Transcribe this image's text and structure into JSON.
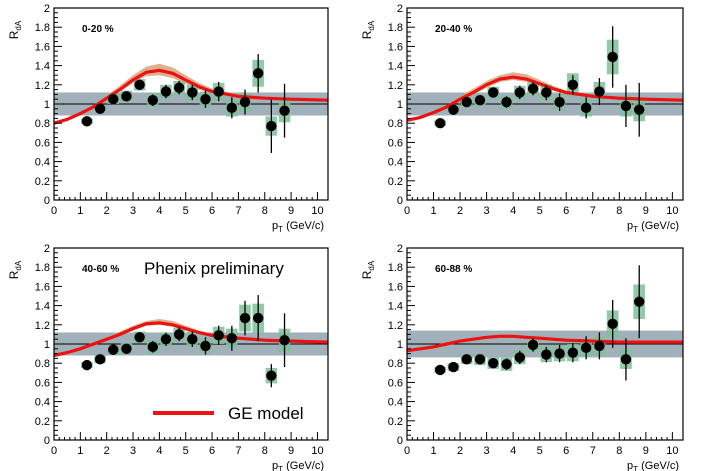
{
  "annotations": {
    "watermark": "Phenix preliminary",
    "model_legend": "GE model"
  },
  "colors": {
    "data_points": "#000000",
    "model_curve": "#ee1111",
    "model_band": "#d7a37a",
    "syst_boxes": "#7fbf9a",
    "norm_band": "#8fa3ad",
    "frame": "#000000"
  },
  "chart_data": [
    {
      "type": "scatter",
      "label": "0-20 %",
      "xlabel": "p_T (GeV/c)",
      "ylabel": "R_dA",
      "xlim": [
        0,
        10.4
      ],
      "ylim": [
        0,
        2
      ],
      "xticks": [
        0,
        1,
        2,
        3,
        4,
        5,
        6,
        7,
        8,
        9,
        10
      ],
      "yticks": [
        0,
        0.2,
        0.4,
        0.6,
        0.8,
        1,
        1.2,
        1.4,
        1.6,
        1.8,
        2
      ],
      "ytick_labels": [
        "0",
        "0.2",
        "0.4",
        "0.6",
        "0.8",
        "1",
        "1.2",
        "1.4",
        "1.6",
        "1.8",
        "2"
      ],
      "points": [
        {
          "x": 1.25,
          "y": 0.82,
          "err": 0.02,
          "syst": 0.03
        },
        {
          "x": 1.75,
          "y": 0.95,
          "err": 0.02,
          "syst": 0.04
        },
        {
          "x": 2.25,
          "y": 1.05,
          "err": 0.03,
          "syst": 0.05
        },
        {
          "x": 2.75,
          "y": 1.08,
          "err": 0.04,
          "syst": 0.06
        },
        {
          "x": 3.25,
          "y": 1.2,
          "err": 0.05,
          "syst": 0.06
        },
        {
          "x": 3.75,
          "y": 1.04,
          "err": 0.06,
          "syst": 0.07
        },
        {
          "x": 4.25,
          "y": 1.13,
          "err": 0.07,
          "syst": 0.07
        },
        {
          "x": 4.75,
          "y": 1.17,
          "err": 0.07,
          "syst": 0.07
        },
        {
          "x": 5.25,
          "y": 1.12,
          "err": 0.08,
          "syst": 0.08
        },
        {
          "x": 5.75,
          "y": 1.05,
          "err": 0.09,
          "syst": 0.08
        },
        {
          "x": 6.25,
          "y": 1.13,
          "err": 0.1,
          "syst": 0.09
        },
        {
          "x": 6.75,
          "y": 0.96,
          "err": 0.11,
          "syst": 0.09
        },
        {
          "x": 7.25,
          "y": 1.02,
          "err": 0.13,
          "syst": 0.1
        },
        {
          "x": 7.75,
          "y": 1.32,
          "err": 0.2,
          "syst": 0.14
        },
        {
          "x": 8.25,
          "y": 0.77,
          "err": 0.28,
          "syst": 0.1
        },
        {
          "x": 8.75,
          "y": 0.93,
          "err": 0.28,
          "syst": 0.12
        }
      ],
      "model": {
        "x": [
          0,
          0.5,
          1,
          1.5,
          2,
          2.5,
          3,
          3.5,
          4,
          4.5,
          5,
          5.5,
          6,
          7,
          8,
          9,
          10.4
        ],
        "y": [
          0.8,
          0.84,
          0.9,
          0.97,
          1.06,
          1.15,
          1.25,
          1.33,
          1.35,
          1.32,
          1.25,
          1.18,
          1.13,
          1.08,
          1.06,
          1.05,
          1.04
        ],
        "band_upper": [
          0.8,
          0.84,
          0.91,
          0.99,
          1.09,
          1.19,
          1.3,
          1.39,
          1.42,
          1.38,
          1.3,
          1.22,
          1.16,
          1.1,
          1.07,
          1.05,
          1.04
        ],
        "band_lower": [
          0.8,
          0.84,
          0.89,
          0.96,
          1.04,
          1.13,
          1.22,
          1.29,
          1.3,
          1.27,
          1.21,
          1.15,
          1.11,
          1.07,
          1.06,
          1.05,
          1.04
        ]
      },
      "norm_band": [
        0.88,
        1.12
      ],
      "reference_line": 1
    },
    {
      "type": "scatter",
      "label": "20-40 %",
      "xlabel": "p_T (GeV/c)",
      "ylabel": "R_dA",
      "xlim": [
        0,
        10.4
      ],
      "ylim": [
        0,
        2
      ],
      "xticks": [
        0,
        1,
        2,
        3,
        4,
        5,
        6,
        7,
        8,
        9,
        10
      ],
      "yticks": [
        0,
        0.2,
        0.4,
        0.6,
        0.8,
        1,
        1.2,
        1.4,
        1.6,
        1.8,
        2
      ],
      "ytick_labels": [
        "0",
        "0.2",
        "0.4",
        "0.6",
        "0.8",
        "1",
        "1.2",
        "1.4",
        "1.6",
        "1.8",
        "2"
      ],
      "points": [
        {
          "x": 1.25,
          "y": 0.8,
          "err": 0.02,
          "syst": 0.03
        },
        {
          "x": 1.75,
          "y": 0.94,
          "err": 0.02,
          "syst": 0.04
        },
        {
          "x": 2.25,
          "y": 1.02,
          "err": 0.03,
          "syst": 0.05
        },
        {
          "x": 2.75,
          "y": 1.04,
          "err": 0.04,
          "syst": 0.06
        },
        {
          "x": 3.25,
          "y": 1.12,
          "err": 0.05,
          "syst": 0.06
        },
        {
          "x": 3.75,
          "y": 1.02,
          "err": 0.06,
          "syst": 0.07
        },
        {
          "x": 4.25,
          "y": 1.12,
          "err": 0.07,
          "syst": 0.07
        },
        {
          "x": 4.75,
          "y": 1.16,
          "err": 0.07,
          "syst": 0.07
        },
        {
          "x": 5.25,
          "y": 1.12,
          "err": 0.08,
          "syst": 0.08
        },
        {
          "x": 5.75,
          "y": 1.02,
          "err": 0.09,
          "syst": 0.08
        },
        {
          "x": 6.25,
          "y": 1.2,
          "err": 0.1,
          "syst": 0.12
        },
        {
          "x": 6.75,
          "y": 0.96,
          "err": 0.11,
          "syst": 0.09
        },
        {
          "x": 7.25,
          "y": 1.13,
          "err": 0.14,
          "syst": 0.1
        },
        {
          "x": 7.75,
          "y": 1.49,
          "err": 0.32,
          "syst": 0.18
        },
        {
          "x": 8.25,
          "y": 0.98,
          "err": 0.22,
          "syst": 0.11
        },
        {
          "x": 8.75,
          "y": 0.94,
          "err": 0.28,
          "syst": 0.12
        }
      ],
      "model": {
        "x": [
          0,
          0.5,
          1,
          1.5,
          2,
          2.5,
          3,
          3.5,
          4,
          4.5,
          5,
          5.5,
          6,
          7,
          8,
          9,
          10.4
        ],
        "y": [
          0.83,
          0.86,
          0.91,
          0.97,
          1.05,
          1.12,
          1.2,
          1.26,
          1.28,
          1.26,
          1.21,
          1.16,
          1.12,
          1.08,
          1.06,
          1.05,
          1.04
        ],
        "band_upper": [
          0.83,
          0.86,
          0.92,
          0.99,
          1.08,
          1.16,
          1.24,
          1.3,
          1.33,
          1.31,
          1.25,
          1.19,
          1.14,
          1.09,
          1.07,
          1.05,
          1.04
        ],
        "band_lower": [
          0.83,
          0.86,
          0.9,
          0.96,
          1.03,
          1.1,
          1.17,
          1.23,
          1.25,
          1.23,
          1.19,
          1.14,
          1.1,
          1.07,
          1.06,
          1.05,
          1.04
        ]
      },
      "norm_band": [
        0.88,
        1.12
      ],
      "reference_line": 1
    },
    {
      "type": "scatter",
      "label": "40-60 %",
      "xlabel": "p_T (GeV/c)",
      "ylabel": "R_dA",
      "xlim": [
        0,
        10.4
      ],
      "ylim": [
        0,
        2
      ],
      "xticks": [
        0,
        1,
        2,
        3,
        4,
        5,
        6,
        7,
        8,
        9,
        10
      ],
      "yticks": [
        0,
        0.2,
        0.4,
        0.6,
        0.8,
        1,
        1.2,
        1.4,
        1.6,
        1.8,
        2
      ],
      "ytick_labels": [
        "0",
        "0.2",
        "0.4",
        "0.6",
        "0.8",
        "1",
        "1.2",
        "1.4",
        "1.6",
        "1.8",
        "2"
      ],
      "points": [
        {
          "x": 1.25,
          "y": 0.78,
          "err": 0.02,
          "syst": 0.03
        },
        {
          "x": 1.75,
          "y": 0.84,
          "err": 0.02,
          "syst": 0.04
        },
        {
          "x": 2.25,
          "y": 0.94,
          "err": 0.03,
          "syst": 0.05
        },
        {
          "x": 2.75,
          "y": 0.95,
          "err": 0.04,
          "syst": 0.06
        },
        {
          "x": 3.25,
          "y": 1.07,
          "err": 0.05,
          "syst": 0.06
        },
        {
          "x": 3.75,
          "y": 0.97,
          "err": 0.06,
          "syst": 0.07
        },
        {
          "x": 4.25,
          "y": 1.05,
          "err": 0.07,
          "syst": 0.07
        },
        {
          "x": 4.75,
          "y": 1.1,
          "err": 0.07,
          "syst": 0.07
        },
        {
          "x": 5.25,
          "y": 1.05,
          "err": 0.08,
          "syst": 0.08
        },
        {
          "x": 5.75,
          "y": 0.98,
          "err": 0.09,
          "syst": 0.08
        },
        {
          "x": 6.25,
          "y": 1.09,
          "err": 0.1,
          "syst": 0.09
        },
        {
          "x": 6.75,
          "y": 1.06,
          "err": 0.13,
          "syst": 0.1
        },
        {
          "x": 7.25,
          "y": 1.27,
          "err": 0.18,
          "syst": 0.14
        },
        {
          "x": 7.75,
          "y": 1.27,
          "err": 0.24,
          "syst": 0.15
        },
        {
          "x": 8.25,
          "y": 0.67,
          "err": 0.12,
          "syst": 0.08
        },
        {
          "x": 8.75,
          "y": 1.04,
          "err": 0.28,
          "syst": 0.12
        }
      ],
      "model": {
        "x": [
          0,
          0.5,
          1,
          1.5,
          2,
          2.5,
          3,
          3.5,
          4,
          4.5,
          5,
          5.5,
          6,
          7,
          8,
          9,
          10.4
        ],
        "y": [
          0.88,
          0.91,
          0.95,
          1.0,
          1.05,
          1.1,
          1.16,
          1.21,
          1.22,
          1.2,
          1.16,
          1.12,
          1.09,
          1.06,
          1.04,
          1.03,
          1.02
        ],
        "band_upper": [
          0.88,
          0.91,
          0.96,
          1.01,
          1.07,
          1.13,
          1.19,
          1.24,
          1.26,
          1.24,
          1.19,
          1.14,
          1.1,
          1.07,
          1.04,
          1.03,
          1.02
        ],
        "band_lower": [
          0.88,
          0.91,
          0.94,
          0.99,
          1.04,
          1.09,
          1.14,
          1.19,
          1.2,
          1.18,
          1.14,
          1.11,
          1.08,
          1.05,
          1.04,
          1.03,
          1.02
        ]
      },
      "norm_band": [
        0.88,
        1.12
      ],
      "reference_line": 1
    },
    {
      "type": "scatter",
      "label": "60-88 %",
      "xlabel": "p_T (GeV/c)",
      "ylabel": "R_dA",
      "xlim": [
        0,
        10.4
      ],
      "ylim": [
        0,
        2
      ],
      "xticks": [
        0,
        1,
        2,
        3,
        4,
        5,
        6,
        7,
        8,
        9,
        10
      ],
      "yticks": [
        0,
        0.2,
        0.4,
        0.6,
        0.8,
        1,
        1.2,
        1.4,
        1.6,
        1.8,
        2
      ],
      "ytick_labels": [
        "0",
        "0.2",
        "0.4",
        "0.6",
        "0.8",
        "1",
        "1.2",
        "1.4",
        "1.6",
        "1.8",
        "2"
      ],
      "points": [
        {
          "x": 1.25,
          "y": 0.73,
          "err": 0.02,
          "syst": 0.03
        },
        {
          "x": 1.75,
          "y": 0.76,
          "err": 0.02,
          "syst": 0.04
        },
        {
          "x": 2.25,
          "y": 0.84,
          "err": 0.03,
          "syst": 0.05
        },
        {
          "x": 2.75,
          "y": 0.84,
          "err": 0.04,
          "syst": 0.06
        },
        {
          "x": 3.25,
          "y": 0.8,
          "err": 0.05,
          "syst": 0.06
        },
        {
          "x": 3.75,
          "y": 0.79,
          "err": 0.06,
          "syst": 0.07
        },
        {
          "x": 4.25,
          "y": 0.86,
          "err": 0.07,
          "syst": 0.07
        },
        {
          "x": 4.75,
          "y": 0.99,
          "err": 0.07,
          "syst": 0.07
        },
        {
          "x": 5.25,
          "y": 0.89,
          "err": 0.08,
          "syst": 0.08
        },
        {
          "x": 5.75,
          "y": 0.9,
          "err": 0.09,
          "syst": 0.08
        },
        {
          "x": 6.25,
          "y": 0.91,
          "err": 0.1,
          "syst": 0.09
        },
        {
          "x": 6.75,
          "y": 0.96,
          "err": 0.12,
          "syst": 0.09
        },
        {
          "x": 7.25,
          "y": 0.98,
          "err": 0.14,
          "syst": 0.1
        },
        {
          "x": 7.75,
          "y": 1.21,
          "err": 0.25,
          "syst": 0.14
        },
        {
          "x": 8.25,
          "y": 0.84,
          "err": 0.22,
          "syst": 0.1
        },
        {
          "x": 8.75,
          "y": 1.44,
          "err": 0.38,
          "syst": 0.18
        }
      ],
      "model": {
        "x": [
          0,
          0.5,
          1,
          1.5,
          2,
          2.5,
          3,
          3.5,
          4,
          4.5,
          5,
          5.5,
          6,
          7,
          8,
          9,
          10.4
        ],
        "y": [
          0.93,
          0.95,
          0.97,
          1.0,
          1.03,
          1.05,
          1.07,
          1.08,
          1.08,
          1.07,
          1.06,
          1.05,
          1.04,
          1.03,
          1.02,
          1.02,
          1.02
        ],
        "band_upper": [
          0.93,
          0.95,
          0.97,
          1.0,
          1.03,
          1.05,
          1.07,
          1.08,
          1.08,
          1.07,
          1.06,
          1.05,
          1.04,
          1.03,
          1.02,
          1.02,
          1.02
        ],
        "band_lower": [
          0.93,
          0.95,
          0.97,
          1.0,
          1.03,
          1.05,
          1.07,
          1.08,
          1.08,
          1.07,
          1.06,
          1.05,
          1.04,
          1.03,
          1.02,
          1.02,
          1.02
        ]
      },
      "norm_band": [
        0.86,
        1.14
      ],
      "reference_line": 1
    }
  ]
}
